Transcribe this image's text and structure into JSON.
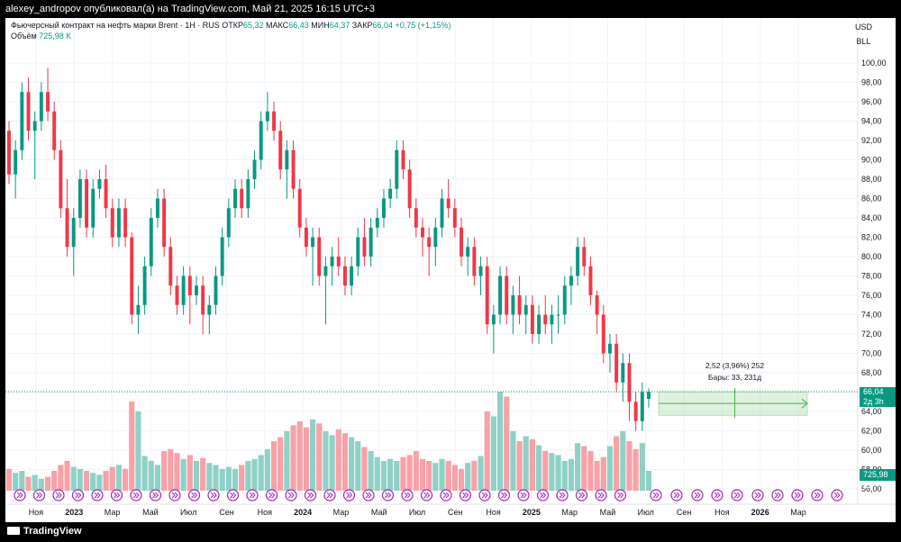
{
  "topbar": {
    "text": "alexey_andropov опубликовал(а) на TradingView.com, Май 21, 2025 16:15 UTC+3"
  },
  "legend": {
    "title": "Фьючерсный контракт на нефть марки Brent · 1Н · RUS",
    "open_label": "ОТКР",
    "open": "65,32",
    "high_label": "МАКС",
    "high": "66,43",
    "low_label": "МИН",
    "low": "64,37",
    "close_label": "ЗАКР",
    "close": "66,04",
    "change": "+0,75 (+1,15%)",
    "volume_label": "Объём",
    "volume": "725,98 K"
  },
  "axis_units": {
    "currency": "USD",
    "unit": "BLL"
  },
  "last_price": {
    "value": "66,04",
    "countdown": "2д 3h"
  },
  "volume_tag": "725,98 K",
  "measure": {
    "line1": "2,52 (3,96%) 252",
    "line2": "Бары: 33, 231д"
  },
  "footer": {
    "brand": "TradingView"
  },
  "colors": {
    "up": "#089981",
    "down": "#f23645",
    "vol_up": "#8fd1c6",
    "vol_down": "#f7a1a8",
    "measure": "#4caf50",
    "marker": "#9c27b0"
  },
  "chart_data": {
    "type": "candlestick",
    "y_ticks": [
      "100,00",
      "98,00",
      "96,00",
      "94,00",
      "92,00",
      "90,00",
      "88,00",
      "86,00",
      "84,00",
      "82,00",
      "80,00",
      "78,00",
      "76,00",
      "74,00",
      "72,00",
      "70,00",
      "68,00",
      "66,00",
      "64,00",
      "62,00",
      "60,00",
      "58,00",
      "56,00"
    ],
    "ylim": [
      55,
      101
    ],
    "x_ticks": [
      "Ноя",
      "2023",
      "Мар",
      "Май",
      "Июл",
      "Сен",
      "Ноя",
      "2024",
      "Мар",
      "Май",
      "Июл",
      "Сен",
      "Ноя",
      "2025",
      "Мар",
      "Май",
      "Июл",
      "Сен",
      "Ноя",
      "2026",
      "Мар"
    ],
    "bars": [
      [
        93,
        94,
        87.5,
        88.5,
        0.22
      ],
      [
        88.5,
        92,
        86,
        91,
        0.18
      ],
      [
        91,
        98,
        90,
        97,
        0.2
      ],
      [
        97,
        98.5,
        92,
        93,
        0.14
      ],
      [
        93,
        95,
        88,
        94,
        0.16
      ],
      [
        94,
        98,
        93,
        97,
        0.12
      ],
      [
        97,
        99.5,
        94,
        95,
        0.14
      ],
      [
        95,
        96,
        90,
        91,
        0.2
      ],
      [
        91,
        92,
        84,
        85,
        0.26
      ],
      [
        85,
        88,
        80,
        81,
        0.3
      ],
      [
        81,
        85,
        78,
        84,
        0.24
      ],
      [
        84,
        89,
        83,
        88,
        0.22
      ],
      [
        88,
        89,
        82,
        83,
        0.2
      ],
      [
        83,
        88,
        82,
        87,
        0.18
      ],
      [
        87,
        89,
        86,
        88,
        0.16
      ],
      [
        88,
        89.5,
        84,
        85,
        0.2
      ],
      [
        85,
        86,
        81,
        82,
        0.24
      ],
      [
        82,
        86,
        81,
        85,
        0.26
      ],
      [
        85,
        86,
        81,
        82,
        0.22
      ],
      [
        82,
        82.5,
        73,
        74,
        0.9
      ],
      [
        74,
        77,
        72,
        75,
        0.8
      ],
      [
        75,
        80,
        74,
        79,
        0.35
      ],
      [
        79,
        85,
        78,
        84,
        0.3
      ],
      [
        84,
        87,
        83,
        86,
        0.26
      ],
      [
        86,
        87,
        80,
        81,
        0.4
      ],
      [
        81,
        82,
        76,
        77,
        0.42
      ],
      [
        77,
        78,
        74,
        75,
        0.38
      ],
      [
        75,
        79,
        74,
        78,
        0.32
      ],
      [
        78,
        79,
        73,
        76,
        0.36
      ],
      [
        76,
        78,
        75,
        77,
        0.3
      ],
      [
        77,
        78,
        72,
        74,
        0.33
      ],
      [
        74,
        76,
        72,
        75,
        0.28
      ],
      [
        75,
        79,
        74,
        78,
        0.26
      ],
      [
        78,
        83,
        77,
        82,
        0.22
      ],
      [
        82,
        86,
        81,
        85,
        0.24
      ],
      [
        85,
        88,
        84,
        87,
        0.22
      ],
      [
        87,
        88,
        84,
        85,
        0.26
      ],
      [
        85,
        89,
        84,
        88,
        0.3
      ],
      [
        88,
        91,
        87,
        90,
        0.32
      ],
      [
        90,
        95,
        89,
        94,
        0.36
      ],
      [
        94,
        97,
        93,
        95,
        0.42
      ],
      [
        95,
        96,
        92,
        93,
        0.5
      ],
      [
        93,
        94,
        88,
        89,
        0.54
      ],
      [
        89,
        92,
        86,
        91,
        0.6
      ],
      [
        91,
        92,
        86,
        87,
        0.66
      ],
      [
        87,
        88,
        82,
        83,
        0.7
      ],
      [
        83,
        84,
        80,
        81,
        0.64
      ],
      [
        81,
        83,
        77,
        82,
        0.72
      ],
      [
        82,
        83,
        77,
        78,
        0.68
      ],
      [
        78,
        80,
        73,
        79,
        0.6
      ],
      [
        79,
        81,
        77,
        80,
        0.56
      ],
      [
        80,
        82,
        78,
        79,
        0.62
      ],
      [
        79,
        80,
        76,
        77,
        0.58
      ],
      [
        77,
        80,
        76,
        79,
        0.54
      ],
      [
        79,
        83,
        78,
        82,
        0.5
      ],
      [
        82,
        84,
        79,
        80,
        0.44
      ],
      [
        80,
        84,
        79,
        83,
        0.4
      ],
      [
        83,
        85,
        82,
        84,
        0.34
      ],
      [
        84,
        87,
        83,
        86,
        0.3
      ],
      [
        86,
        88,
        85,
        87,
        0.32
      ],
      [
        87,
        92,
        86,
        91,
        0.3
      ],
      [
        91,
        92,
        88,
        89,
        0.34
      ],
      [
        89,
        90,
        84,
        85,
        0.36
      ],
      [
        85,
        86,
        82,
        83,
        0.4
      ],
      [
        83,
        84,
        80,
        82,
        0.32
      ],
      [
        82,
        83,
        78,
        81,
        0.3
      ],
      [
        81,
        84,
        79,
        83,
        0.28
      ],
      [
        83,
        87,
        82,
        86,
        0.32
      ],
      [
        86,
        88,
        84,
        85,
        0.3
      ],
      [
        85,
        86,
        82,
        83,
        0.26
      ],
      [
        83,
        84,
        79,
        80,
        0.22
      ],
      [
        80,
        82,
        78,
        81,
        0.28
      ],
      [
        81,
        82,
        77,
        78,
        0.3
      ],
      [
        78,
        80,
        76,
        79,
        0.35
      ],
      [
        79,
        80,
        72,
        73,
        0.8
      ],
      [
        73,
        75,
        70,
        74,
        0.75
      ],
      [
        74,
        79,
        73,
        78,
        1.0
      ],
      [
        78,
        79,
        73,
        74,
        0.95
      ],
      [
        74,
        77,
        72,
        76,
        0.6
      ],
      [
        76,
        78,
        73,
        74,
        0.5
      ],
      [
        74,
        76,
        72,
        75,
        0.55
      ],
      [
        75,
        76,
        71,
        72,
        0.52
      ],
      [
        72,
        75,
        71,
        74,
        0.46
      ],
      [
        74,
        76,
        72,
        73,
        0.4
      ],
      [
        73,
        75,
        71,
        74,
        0.38
      ],
      [
        74,
        76,
        72,
        74,
        0.36
      ],
      [
        74,
        78,
        73,
        77,
        0.3
      ],
      [
        77,
        79,
        75,
        78,
        0.32
      ],
      [
        78,
        82,
        77,
        81,
        0.48
      ],
      [
        81,
        82,
        78,
        79,
        0.45
      ],
      [
        79,
        80,
        75,
        76,
        0.4
      ],
      [
        76,
        76.5,
        72,
        74,
        0.3
      ],
      [
        74,
        75,
        69,
        70,
        0.34
      ],
      [
        70,
        72,
        68,
        71,
        0.45
      ],
      [
        71,
        72,
        66,
        67,
        0.55
      ],
      [
        67,
        70,
        65,
        69,
        0.6
      ],
      [
        69,
        70,
        63,
        65,
        0.5
      ],
      [
        65,
        66,
        62,
        63,
        0.42
      ],
      [
        63,
        67,
        62,
        66,
        0.48
      ],
      [
        65.3,
        66.4,
        64.4,
        66.04,
        0.2
      ]
    ]
  }
}
